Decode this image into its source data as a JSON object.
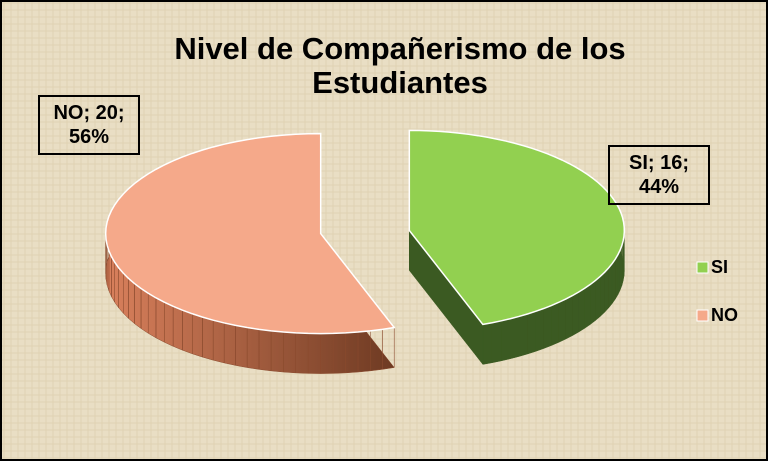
{
  "chart_data": {
    "type": "pie",
    "title": "Nivel de Compañerismo de los Estudiantes",
    "categories": [
      "SI",
      "NO"
    ],
    "values": [
      16,
      20
    ],
    "value_labels": [
      "SI; 16; 44%",
      "NO; 20; 56%"
    ],
    "colors": [
      "#92d050",
      "#f5a98a"
    ],
    "legend": "right"
  }
}
